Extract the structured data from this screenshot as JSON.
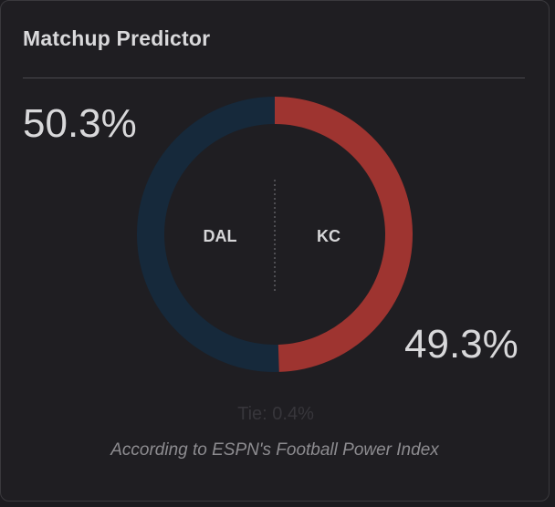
{
  "widget": {
    "title": "Matchup Predictor",
    "source_note": "According to ESPN's Football Power Index"
  },
  "matchup": {
    "away": {
      "abbr": "DAL",
      "win_pct": "50.3%",
      "win_value": 50.3,
      "color": "#16293b"
    },
    "home": {
      "abbr": "KC",
      "win_pct": "49.3%",
      "win_value": 49.3,
      "color": "#9e3430"
    },
    "tie_text": "Tie: 0.4%"
  }
}
